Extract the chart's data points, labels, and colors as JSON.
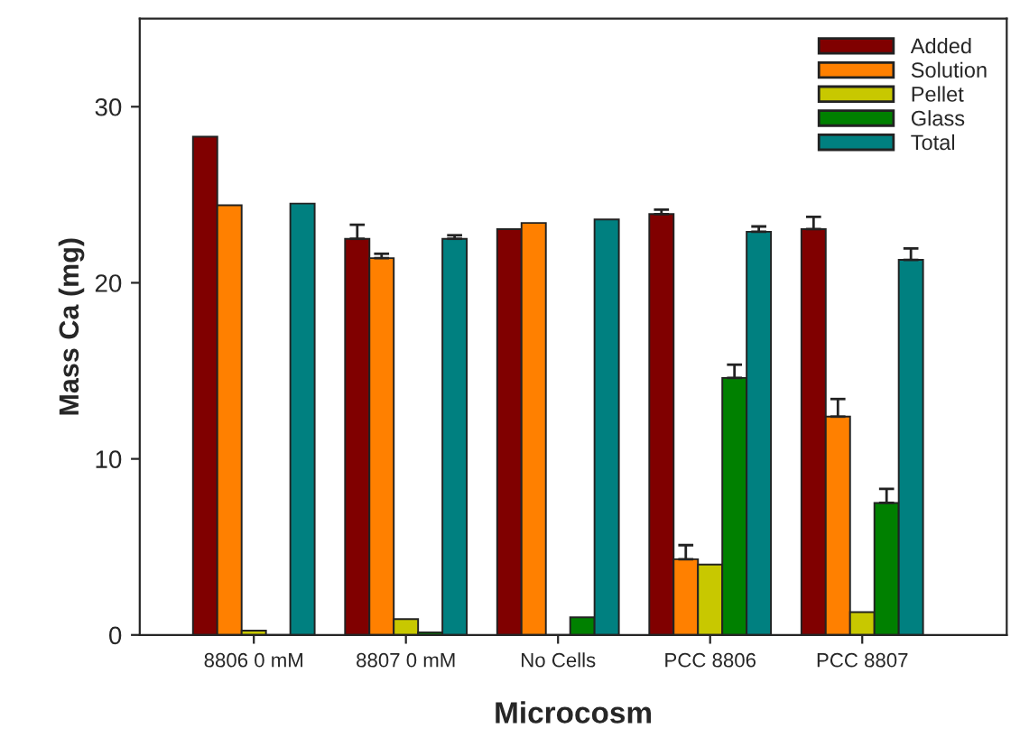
{
  "chart_data": {
    "type": "bar",
    "xlabel": "Microcosm",
    "ylabel": "Mass Ca (mg)",
    "categories": [
      "8806 0 mM",
      "8807 0 mM",
      "No Cells",
      "PCC 8806",
      "PCC 8807"
    ],
    "ylim": [
      0,
      35
    ],
    "yticks": [
      0,
      10,
      20,
      30
    ],
    "grid": false,
    "legend": "top right",
    "series": [
      {
        "name": "Added",
        "color": "#800000",
        "values": [
          28.3,
          22.5,
          23.05,
          23.9,
          23.05
        ],
        "errors": [
          null,
          [
            22.5,
            23.3
          ],
          null,
          [
            23.9,
            24.15
          ],
          [
            23.05,
            23.75
          ]
        ]
      },
      {
        "name": "Solution",
        "color": "#ff8000",
        "values": [
          24.4,
          21.4,
          23.4,
          4.3,
          12.4
        ],
        "errors": [
          null,
          [
            21.4,
            21.65
          ],
          null,
          [
            4.3,
            5.1
          ],
          [
            12.4,
            13.4
          ]
        ]
      },
      {
        "name": "Pellet",
        "color": "#c8c800",
        "values": [
          0.25,
          0.9,
          null,
          4.0,
          1.3
        ],
        "errors": [
          null,
          null,
          null,
          null,
          null
        ]
      },
      {
        "name": "Glass",
        "color": "#008000",
        "values": [
          null,
          0.15,
          1.0,
          14.6,
          7.5
        ],
        "errors": [
          null,
          null,
          null,
          [
            14.6,
            15.35
          ],
          [
            7.5,
            8.3
          ]
        ]
      },
      {
        "name": "Total",
        "color": "#008080",
        "values": [
          24.5,
          22.5,
          23.6,
          22.9,
          21.3
        ],
        "errors": [
          null,
          [
            22.5,
            22.7
          ],
          null,
          [
            22.9,
            23.2
          ],
          [
            21.3,
            21.95
          ]
        ]
      }
    ]
  }
}
